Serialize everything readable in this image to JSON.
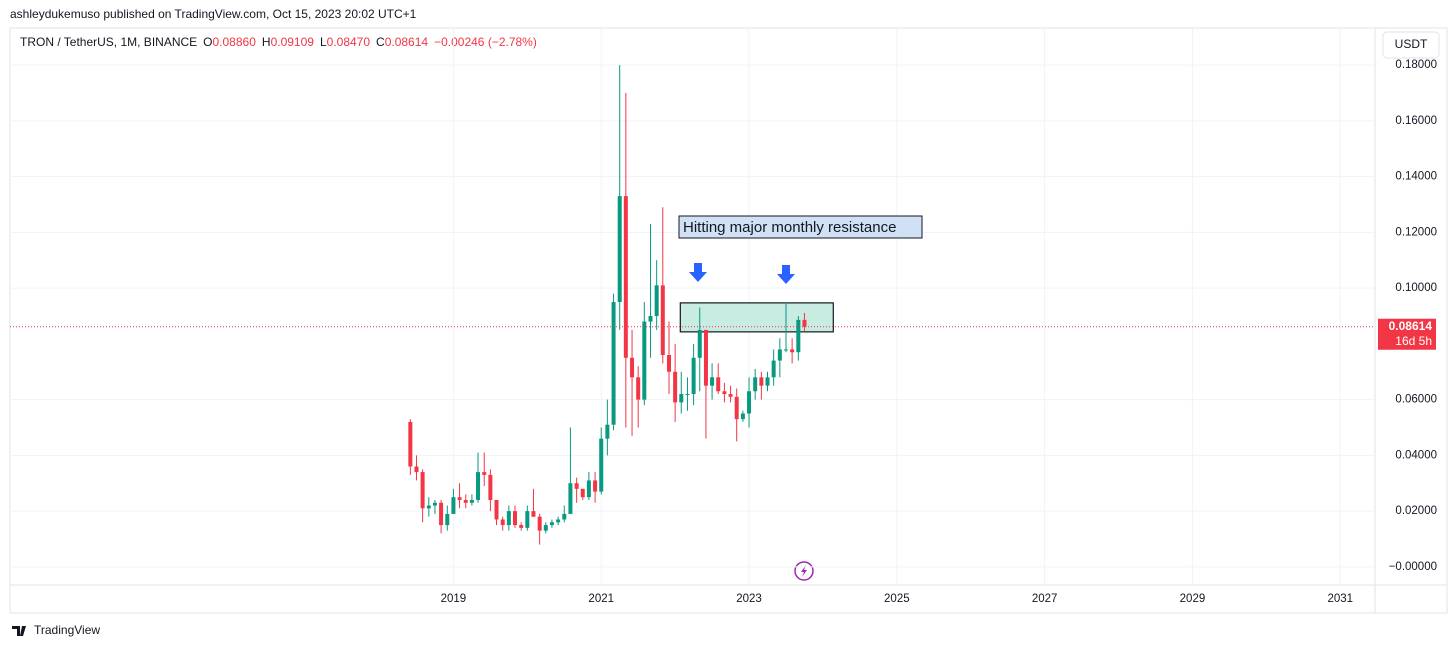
{
  "header": {
    "attribution": "ashleydukemuso published on TradingView.com, Oct 15, 2023 20:02 UTC+1",
    "symbol": "TRON / TetherUS, 1M, BINANCE",
    "ohlc": [
      {
        "key": "O",
        "value": "0.08860"
      },
      {
        "key": "H",
        "value": "0.09109"
      },
      {
        "key": "L",
        "value": "0.08470"
      },
      {
        "key": "C",
        "value": "0.08614"
      }
    ],
    "change": "−0.00246 (−2.78%)",
    "currency": "USDT"
  },
  "footer": {
    "brand": "TradingView"
  },
  "chart_data": {
    "type": "candlestick",
    "up_color": "#089981",
    "down_color": "#f23645",
    "annotation": "Hitting major monthly resistance",
    "price_label": "0.08614",
    "countdown": "16d 5h",
    "zone": {
      "x": [
        2022.07,
        2024.14
      ],
      "y": [
        0.0843,
        0.0947
      ],
      "color": "#c8ebe2"
    },
    "xlim": [
      2013.0,
      2031.47
    ],
    "xticks": [
      2019,
      2021,
      2023,
      2025,
      2027,
      2029,
      2031
    ],
    "ylim": [
      -0.0065,
      0.1933
    ],
    "yticks": [
      {
        "value": 0,
        "label": "−0.00000"
      },
      {
        "value": 0.02,
        "label": "0.02000"
      },
      {
        "value": 0.04,
        "label": "0.04000"
      },
      {
        "value": 0.06,
        "label": "0.06000"
      },
      {
        "value": 0.1,
        "label": "0.10000"
      },
      {
        "value": 0.12,
        "label": "0.12000"
      },
      {
        "value": 0.14,
        "label": "0.14000"
      },
      {
        "value": 0.16,
        "label": "0.16000"
      },
      {
        "value": 0.18,
        "label": "0.18000"
      }
    ],
    "grid": true,
    "x": [
      2018.417,
      2018.5,
      2018.583,
      2018.667,
      2018.75,
      2018.833,
      2018.917,
      2019.0,
      2019.083,
      2019.167,
      2019.25,
      2019.333,
      2019.417,
      2019.5,
      2019.583,
      2019.667,
      2019.75,
      2019.833,
      2019.917,
      2020.0,
      2020.083,
      2020.167,
      2020.25,
      2020.333,
      2020.417,
      2020.5,
      2020.583,
      2020.667,
      2020.75,
      2020.833,
      2020.917,
      2021.0,
      2021.083,
      2021.167,
      2021.25,
      2021.333,
      2021.417,
      2021.5,
      2021.583,
      2021.667,
      2021.75,
      2021.833,
      2021.917,
      2022.0,
      2022.083,
      2022.167,
      2022.25,
      2022.333,
      2022.417,
      2022.5,
      2022.583,
      2022.667,
      2022.75,
      2022.833,
      2022.917,
      2023.0,
      2023.083,
      2023.167,
      2023.25,
      2023.333,
      2023.417,
      2023.5,
      2023.583,
      2023.667,
      2023.75
    ],
    "open": [
      0.052,
      0.036,
      0.034,
      0.021,
      0.022,
      0.023,
      0.015,
      0.019,
      0.025,
      0.024,
      0.023,
      0.024,
      0.034,
      0.033,
      0.024,
      0.017,
      0.015,
      0.02,
      0.015,
      0.014,
      0.02,
      0.018,
      0.013,
      0.015,
      0.016,
      0.017,
      0.019,
      0.03,
      0.028,
      0.025,
      0.031,
      0.027,
      0.046,
      0.051,
      0.095,
      0.133,
      0.075,
      0.068,
      0.06,
      0.088,
      0.09,
      0.101,
      0.076,
      0.07,
      0.059,
      0.062,
      0.062,
      0.075,
      0.085,
      0.065,
      0.068,
      0.063,
      0.062,
      0.061,
      0.053,
      0.055,
      0.063,
      0.068,
      0.065,
      0.068,
      0.074,
      0.078,
      0.078,
      0.077,
      0.0886
    ],
    "high": [
      0.053,
      0.04,
      0.035,
      0.025,
      0.024,
      0.024,
      0.022,
      0.028,
      0.03,
      0.026,
      0.026,
      0.041,
      0.041,
      0.035,
      0.024,
      0.018,
      0.022,
      0.022,
      0.016,
      0.022,
      0.028,
      0.019,
      0.016,
      0.017,
      0.018,
      0.022,
      0.05,
      0.032,
      0.028,
      0.034,
      0.034,
      0.05,
      0.06,
      0.098,
      0.18,
      0.17,
      0.085,
      0.072,
      0.095,
      0.123,
      0.11,
      0.129,
      0.088,
      0.08,
      0.07,
      0.068,
      0.08,
      0.093,
      0.085,
      0.073,
      0.073,
      0.066,
      0.065,
      0.064,
      0.056,
      0.068,
      0.071,
      0.07,
      0.07,
      0.078,
      0.082,
      0.095,
      0.082,
      0.09,
      0.09109
    ],
    "low": [
      0.033,
      0.031,
      0.016,
      0.018,
      0.019,
      0.012,
      0.013,
      0.019,
      0.021,
      0.021,
      0.022,
      0.023,
      0.029,
      0.02,
      0.015,
      0.013,
      0.013,
      0.014,
      0.013,
      0.013,
      0.018,
      0.008,
      0.012,
      0.014,
      0.015,
      0.016,
      0.019,
      0.023,
      0.024,
      0.024,
      0.023,
      0.026,
      0.04,
      0.049,
      0.085,
      0.05,
      0.047,
      0.05,
      0.058,
      0.075,
      0.085,
      0.073,
      0.062,
      0.052,
      0.055,
      0.056,
      0.058,
      0.063,
      0.046,
      0.06,
      0.062,
      0.059,
      0.059,
      0.045,
      0.052,
      0.05,
      0.06,
      0.06,
      0.063,
      0.065,
      0.068,
      0.077,
      0.073,
      0.074,
      0.0847
    ],
    "close": [
      0.036,
      0.034,
      0.021,
      0.022,
      0.023,
      0.015,
      0.019,
      0.025,
      0.024,
      0.023,
      0.024,
      0.034,
      0.033,
      0.024,
      0.017,
      0.015,
      0.02,
      0.015,
      0.014,
      0.02,
      0.018,
      0.013,
      0.015,
      0.016,
      0.017,
      0.019,
      0.03,
      0.028,
      0.025,
      0.031,
      0.027,
      0.046,
      0.051,
      0.095,
      0.133,
      0.075,
      0.068,
      0.06,
      0.088,
      0.09,
      0.101,
      0.076,
      0.07,
      0.059,
      0.062,
      0.062,
      0.075,
      0.085,
      0.065,
      0.068,
      0.063,
      0.062,
      0.061,
      0.053,
      0.055,
      0.063,
      0.068,
      0.065,
      0.068,
      0.074,
      0.078,
      0.078,
      0.077,
      0.0886,
      0.08614
    ]
  }
}
